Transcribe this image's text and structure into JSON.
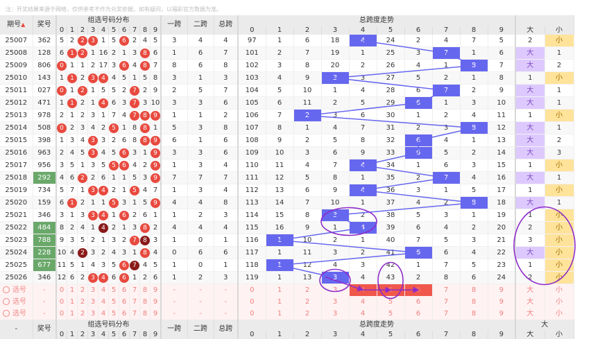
{
  "note": "注：开奖结果来源于网络，仅供参考不作为兑奖依据，如有疑问，以福彩官方数据为准。",
  "headers": {
    "period": "期号",
    "sort_icon": "sort-icon",
    "award": "奖号",
    "dist": "组选号码分布",
    "span1": "一跨",
    "span2": "二跨",
    "span_total": "总跨",
    "trend": "总跨度走势",
    "big": "大",
    "small": "小",
    "digits": [
      "0",
      "1",
      "2",
      "3",
      "4",
      "5",
      "6",
      "7",
      "8",
      "9"
    ],
    "trend_digits": [
      "0",
      "1",
      "2",
      "3",
      "4",
      "5",
      "6",
      "7",
      "8",
      "9"
    ],
    "footer_period": "-"
  },
  "rows": [
    {
      "period": "25007",
      "award": "362",
      "d": [
        "5",
        "2",
        "2",
        "3",
        "1",
        "5",
        "6",
        "2",
        "4",
        "5"
      ],
      "balls": [
        2,
        3,
        6
      ],
      "s1": "3",
      "s2": "4",
      "st": "4",
      "t": [
        "97",
        "1",
        "6",
        "18",
        "4",
        "24",
        "2",
        "4",
        "7",
        "5"
      ],
      "hl": 4,
      "big": "2",
      "small": "小"
    },
    {
      "period": "25008",
      "award": "128",
      "d": [
        "6",
        "1",
        "2",
        "1",
        "16",
        "2",
        "1",
        "3",
        "8",
        "6"
      ],
      "balls": [
        1,
        2,
        8
      ],
      "s1": "1",
      "s2": "6",
      "st": "7",
      "t": [
        "101",
        "2",
        "7",
        "19",
        "1",
        "25",
        "3",
        "7",
        "1",
        "6"
      ],
      "hl": 7,
      "big": "大",
      "small": "1"
    },
    {
      "period": "25009",
      "award": "806",
      "d": [
        "0",
        "1",
        "1",
        "2",
        "17",
        "3",
        "6",
        "4",
        "8",
        "7"
      ],
      "balls": [
        0,
        6,
        8
      ],
      "s1": "8",
      "s2": "6",
      "st": "8",
      "t": [
        "102",
        "3",
        "8",
        "20",
        "2",
        "26",
        "4",
        "1",
        "8",
        "7"
      ],
      "hl": 8,
      "big": "大",
      "small": "2"
    },
    {
      "period": "25010",
      "award": "143",
      "d": [
        "1",
        "1",
        "2",
        "3",
        "4",
        "4",
        "5",
        "1",
        "5",
        "8"
      ],
      "balls": [
        1,
        3,
        4
      ],
      "s1": "3",
      "s2": "1",
      "st": "3",
      "t": [
        "103",
        "4",
        "9",
        "3",
        "3",
        "27",
        "5",
        "2",
        "1",
        "8"
      ],
      "hl": 3,
      "big": "1",
      "small": "小"
    },
    {
      "period": "25011",
      "award": "027",
      "d": [
        "0",
        "1",
        "2",
        "1",
        "5",
        "5",
        "2",
        "7",
        "2",
        "9"
      ],
      "balls": [
        0,
        2,
        7
      ],
      "s1": "2",
      "s2": "5",
      "st": "7",
      "t": [
        "104",
        "5",
        "10",
        "1",
        "4",
        "28",
        "6",
        "7",
        "2",
        "9"
      ],
      "hl": 7,
      "big": "大",
      "small": "1"
    },
    {
      "period": "25012",
      "award": "471",
      "d": [
        "1",
        "1",
        "2",
        "1",
        "4",
        "6",
        "3",
        "7",
        "3",
        "10"
      ],
      "balls": [
        1,
        4,
        7
      ],
      "s1": "3",
      "s2": "3",
      "st": "6",
      "t": [
        "105",
        "6",
        "11",
        "2",
        "5",
        "29",
        "6",
        "1",
        "3",
        "10"
      ],
      "hl": 6,
      "big": "大",
      "small": "1"
    },
    {
      "period": "25013",
      "award": "978",
      "d": [
        "2",
        "1",
        "2",
        "3",
        "1",
        "7",
        "4",
        "7",
        "8",
        "9"
      ],
      "balls": [
        7,
        8,
        9
      ],
      "s1": "1",
      "s2": "1",
      "st": "2",
      "t": [
        "106",
        "7",
        "2",
        "3",
        "6",
        "30",
        "1",
        "2",
        "4",
        "11"
      ],
      "hl": 2,
      "big": "1",
      "small": "小"
    },
    {
      "period": "25014",
      "award": "508",
      "d": [
        "0",
        "2",
        "3",
        "4",
        "2",
        "5",
        "1",
        "8",
        "8",
        "1"
      ],
      "balls": [
        0,
        5,
        8
      ],
      "s1": "5",
      "s2": "3",
      "st": "8",
      "t": [
        "107",
        "8",
        "1",
        "4",
        "7",
        "31",
        "2",
        "3",
        "8",
        "12"
      ],
      "hl": 8,
      "big": "大",
      "small": "1"
    },
    {
      "period": "25015",
      "award": "398",
      "d": [
        "1",
        "3",
        "4",
        "3",
        "3",
        "2",
        "6",
        "8",
        "8",
        "9"
      ],
      "balls": [
        3,
        8,
        9
      ],
      "s1": "6",
      "s2": "1",
      "st": "6",
      "t": [
        "108",
        "9",
        "2",
        "5",
        "8",
        "32",
        "6",
        "4",
        "1",
        "13"
      ],
      "hl": 6,
      "big": "大",
      "small": "2"
    },
    {
      "period": "25016",
      "award": "963",
      "d": [
        "2",
        "4",
        "5",
        "3",
        "4",
        "5",
        "6",
        "3",
        "1",
        "9"
      ],
      "balls": [
        3,
        6,
        9
      ],
      "s1": "3",
      "s2": "3",
      "st": "6",
      "t": [
        "109",
        "10",
        "3",
        "6",
        "9",
        "33",
        "6",
        "5",
        "2",
        "14"
      ],
      "hl": 6,
      "big": "大",
      "small": "3"
    },
    {
      "period": "25017",
      "award": "956",
      "d": [
        "3",
        "5",
        "1",
        "3",
        "5",
        "5",
        "6",
        "4",
        "2",
        "9"
      ],
      "balls": [
        5,
        6,
        9
      ],
      "s1": "1",
      "s2": "3",
      "st": "4",
      "t": [
        "110",
        "11",
        "4",
        "7",
        "4",
        "34",
        "1",
        "6",
        "3",
        "15"
      ],
      "hl": 4,
      "big": "1",
      "small": "小"
    },
    {
      "period": "25018",
      "award": "292",
      "d": [
        "4",
        "6",
        "2",
        "2",
        "6",
        "1",
        "1",
        "5",
        "3",
        "9"
      ],
      "balls": [
        2,
        9
      ],
      "s1": "7",
      "s2": "7",
      "st": "7",
      "t": [
        "111",
        "12",
        "5",
        "8",
        "1",
        "35",
        "2",
        "7",
        "4",
        "16"
      ],
      "hl": 7,
      "big": "大",
      "small": "1"
    },
    {
      "period": "25019",
      "award": "734",
      "d": [
        "5",
        "7",
        "1",
        "3",
        "4",
        "2",
        "1",
        "5",
        "4",
        "7"
      ],
      "balls": [
        3,
        4,
        7
      ],
      "s1": "1",
      "s2": "3",
      "st": "4",
      "t": [
        "112",
        "13",
        "6",
        "9",
        "4",
        "36",
        "3",
        "1",
        "5",
        "17"
      ],
      "hl": 4,
      "big": "1",
      "small": "小"
    },
    {
      "period": "25020",
      "award": "159",
      "d": [
        "6",
        "1",
        "2",
        "1",
        "1",
        "5",
        "3",
        "1",
        "5",
        "9"
      ],
      "balls": [
        1,
        5,
        9
      ],
      "s1": "4",
      "s2": "4",
      "st": "8",
      "t": [
        "113",
        "14",
        "7",
        "10",
        "1",
        "37",
        "4",
        "2",
        "8",
        "18"
      ],
      "hl": 8,
      "big": "大",
      "small": "1"
    },
    {
      "period": "25021",
      "award": "346",
      "d": [
        "3",
        "1",
        "3",
        "3",
        "4",
        "1",
        "6",
        "2",
        "6",
        "1"
      ],
      "balls": [
        3,
        4,
        6
      ],
      "s1": "1",
      "s2": "2",
      "st": "3",
      "t": [
        "114",
        "15",
        "8",
        "3",
        "2",
        "38",
        "5",
        "3",
        "1",
        "19"
      ],
      "hl": 3,
      "big": "1",
      "small": "小"
    },
    {
      "period": "25022",
      "award": "484",
      "d": [
        "8",
        "2",
        "4",
        "1",
        "4",
        "2",
        "1",
        "3",
        "8",
        "2"
      ],
      "balls": [
        4,
        8
      ],
      "s1": "4",
      "s2": "4",
      "st": "4",
      "t": [
        "115",
        "16",
        "9",
        "1",
        "4",
        "39",
        "6",
        "4",
        "2",
        "20"
      ],
      "hl": 4,
      "big": "2",
      "small": "小"
    },
    {
      "period": "25023",
      "award": "788",
      "d": [
        "9",
        "3",
        "5",
        "2",
        "1",
        "3",
        "2",
        "7",
        "8",
        "3"
      ],
      "balls": [
        7,
        8
      ],
      "s1": "1",
      "s2": "0",
      "st": "1",
      "t": [
        "116",
        "1",
        "10",
        "2",
        "1",
        "40",
        "7",
        "5",
        "3",
        "21"
      ],
      "hl": 1,
      "big": "3",
      "small": "小"
    },
    {
      "period": "25024",
      "award": "228",
      "d": [
        "10",
        "4",
        "2",
        "3",
        "2",
        "4",
        "3",
        "1",
        "8",
        "4"
      ],
      "balls": [
        2,
        8
      ],
      "s1": "0",
      "s2": "6",
      "st": "6",
      "t": [
        "117",
        "1",
        "11",
        "3",
        "2",
        "41",
        "6",
        "6",
        "4",
        "22"
      ],
      "hl": 6,
      "big": "大",
      "small": "小"
    },
    {
      "period": "25025",
      "award": "677",
      "d": [
        "11",
        "5",
        "1",
        "4",
        "3",
        "5",
        "6",
        "7",
        "4",
        "5"
      ],
      "balls": [
        6,
        7
      ],
      "s1": "1",
      "s2": "0",
      "st": "1",
      "t": [
        "118",
        "1",
        "12",
        "4",
        "3",
        "42",
        "1",
        "7",
        "5",
        "23"
      ],
      "hl": 1,
      "big": "1",
      "small": "小"
    },
    {
      "period": "25026",
      "award": "346",
      "d": [
        "12",
        "6",
        "2",
        "3",
        "4",
        "6",
        "6",
        "1",
        "2",
        "6"
      ],
      "balls": [
        3,
        4,
        6
      ],
      "s1": "1",
      "s2": "2",
      "st": "3",
      "t": [
        "119",
        "1",
        "13",
        "3",
        "4",
        "43",
        "2",
        "8",
        "6",
        "24"
      ],
      "hl": 3,
      "big": "2",
      "small": "小"
    }
  ],
  "green_award_rows": [
    11,
    15,
    16,
    17,
    18
  ],
  "select_rows": [
    {
      "label": "选号",
      "red_cell": true
    },
    {
      "label": "选号",
      "red_cell": false
    },
    {
      "label": "选号",
      "red_cell": false
    }
  ],
  "select_digits": [
    "0",
    "1",
    "2",
    "3",
    "4",
    "5",
    "6",
    "7",
    "8",
    "9"
  ],
  "select_dash": "-",
  "colors": {
    "ball": "#e84a3f",
    "trend_highlight": "#6667ef",
    "big": "#dec9ff",
    "small": "#ffe39a",
    "annotation": "#8e2cc9",
    "award_green": "#6aa86a"
  }
}
